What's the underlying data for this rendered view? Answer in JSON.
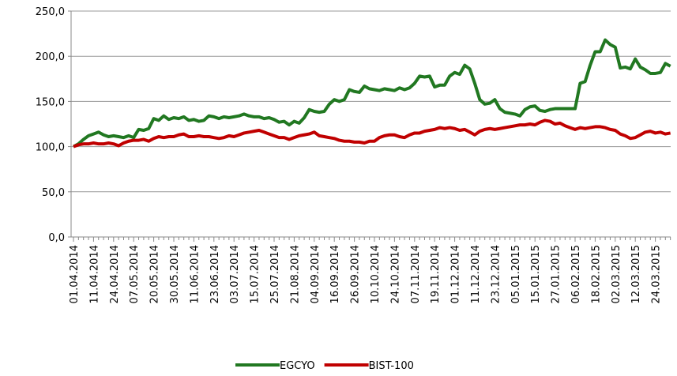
{
  "chart_data": {
    "type": "line",
    "categories": [
      "01.04.2014",
      null,
      null,
      null,
      "11.04.2014",
      null,
      null,
      null,
      "24.04.2014",
      null,
      null,
      null,
      "07.05.2014",
      null,
      null,
      null,
      "20.05.2014",
      null,
      null,
      null,
      "30.05.2014",
      null,
      null,
      null,
      "11.06.2014",
      null,
      null,
      null,
      "23.06.2014",
      null,
      null,
      null,
      "03.07.2014",
      null,
      null,
      null,
      "15.07.2014",
      null,
      null,
      null,
      "25.07.2014",
      null,
      null,
      null,
      "21.08.2014",
      null,
      null,
      null,
      "04.09.2014",
      null,
      null,
      null,
      "16.09.2014",
      null,
      null,
      null,
      "26.09.2014",
      null,
      null,
      null,
      "10.10.2014",
      null,
      null,
      null,
      "24.10.2014",
      null,
      null,
      null,
      "07.11.2014",
      null,
      null,
      null,
      "19.11.2014",
      null,
      null,
      null,
      "01.12.2014",
      null,
      null,
      null,
      "11.12.2014",
      null,
      null,
      null,
      "23.12.2014",
      null,
      null,
      null,
      "05.01.2015",
      null,
      null,
      null,
      "15.01.2015",
      null,
      null,
      null,
      "27.01.2015",
      null,
      null,
      null,
      "06.02.2015",
      null,
      null,
      null,
      "18.02.2015",
      null,
      null,
      null,
      "02.03.2015",
      null,
      null,
      null,
      "12.03.2015",
      null,
      null,
      null,
      "24.03.2015",
      null,
      null,
      null
    ],
    "series": [
      {
        "name": "EGCYO",
        "color": "#217821",
        "values": [
          100,
          103,
          108,
          112,
          114,
          116,
          113,
          111,
          112,
          111,
          110,
          112,
          110,
          119,
          118,
          120,
          131,
          129,
          134,
          130,
          132,
          131,
          133,
          129,
          130,
          128,
          129,
          134,
          133,
          131,
          133,
          132,
          133,
          134,
          136,
          134,
          133,
          133,
          131,
          132,
          130,
          127,
          128,
          124,
          128,
          126,
          132,
          141,
          139,
          138,
          139,
          147,
          152,
          150,
          152,
          163,
          161,
          160,
          167,
          164,
          163,
          162,
          164,
          163,
          162,
          165,
          163,
          165,
          170,
          178,
          177,
          178,
          166,
          168,
          168,
          178,
          182,
          180,
          190,
          186,
          170,
          152,
          147,
          148,
          152,
          142,
          138,
          137,
          136,
          134,
          141,
          144,
          145,
          140,
          139,
          141,
          142,
          142,
          142,
          142,
          142,
          170,
          172,
          190,
          205,
          205,
          218,
          213,
          210,
          187,
          188,
          186,
          197,
          188,
          185,
          181,
          181,
          182,
          192,
          189
        ]
      },
      {
        "name": "BIST-100",
        "color": "#c00000",
        "values": [
          100,
          102,
          103,
          103,
          104,
          103,
          103,
          104,
          103,
          101,
          104,
          106,
          107,
          107,
          108,
          106,
          109,
          111,
          110,
          111,
          111,
          113,
          114,
          111,
          111,
          112,
          111,
          111,
          110,
          109,
          110,
          112,
          111,
          113,
          115,
          116,
          117,
          118,
          116,
          114,
          112,
          110,
          110,
          108,
          110,
          112,
          113,
          114,
          116,
          112,
          111,
          110,
          109,
          107,
          106,
          106,
          105,
          105,
          104,
          106,
          106,
          110,
          112,
          113,
          113,
          111,
          110,
          113,
          115,
          115,
          117,
          118,
          119,
          121,
          120,
          121,
          120,
          118,
          119,
          116,
          113,
          117,
          119,
          120,
          119,
          120,
          121,
          122,
          123,
          124,
          124,
          125,
          124,
          127,
          129,
          128,
          125,
          126,
          123,
          121,
          119,
          121,
          120,
          121,
          122,
          122,
          121,
          119,
          118,
          114,
          112,
          109,
          110,
          113,
          116,
          117,
          115,
          116,
          114,
          115
        ]
      }
    ],
    "ylim": [
      0,
      250
    ],
    "yticks": [
      {
        "value": 0,
        "label": "0,0"
      },
      {
        "value": 50,
        "label": "50,0"
      },
      {
        "value": 100,
        "label": "100,0"
      },
      {
        "value": 150,
        "label": "150,0"
      },
      {
        "value": 200,
        "label": "200,0"
      },
      {
        "value": 250,
        "label": "250,0"
      }
    ],
    "grid": true,
    "legend": "bottom"
  }
}
